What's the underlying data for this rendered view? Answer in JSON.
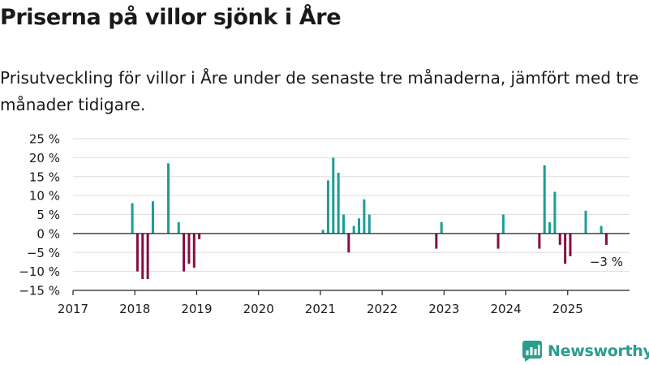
{
  "title": "Priserna på villor sjönk i Åre",
  "subtitle": "Prisutveckling för villor i Åre under de senaste tre månaderna, jämfört med tre månader tidigare.",
  "brand": {
    "name": "Newsworthy",
    "color": "#2a9d8f",
    "icon": "bar-chart-bubble-icon"
  },
  "colors": {
    "positive": "#1c9d96",
    "negative": "#850e44",
    "grid": "#dedede",
    "axis": "#222222"
  },
  "chart_data": {
    "type": "bar",
    "title": "Priserna på villor sjönk i Åre",
    "xlabel": "",
    "ylabel": "",
    "ylim": [
      -15,
      25
    ],
    "yticks": [
      -15,
      -10,
      -5,
      0,
      5,
      10,
      15,
      20,
      25
    ],
    "ytick_labels": [
      "−15 %",
      "−10 %",
      "−5 %",
      "0 %",
      "5 %",
      "10 %",
      "15 %",
      "20 %",
      "25 %"
    ],
    "xlim": [
      "2017-01",
      "2026-01"
    ],
    "xticks": [
      "2017",
      "2018",
      "2019",
      "2020",
      "2021",
      "2022",
      "2023",
      "2024",
      "2025"
    ],
    "grid": true,
    "annotation": {
      "month": "2025-08",
      "label": "−3 %"
    },
    "points": [
      {
        "month": "2017-12",
        "value": 8
      },
      {
        "month": "2018-01",
        "value": -10
      },
      {
        "month": "2018-02",
        "value": -12
      },
      {
        "month": "2018-03",
        "value": -12
      },
      {
        "month": "2018-04",
        "value": 8.5
      },
      {
        "month": "2018-07",
        "value": 18.5
      },
      {
        "month": "2018-09",
        "value": 3
      },
      {
        "month": "2018-10",
        "value": -10
      },
      {
        "month": "2018-11",
        "value": -8
      },
      {
        "month": "2018-12",
        "value": -9
      },
      {
        "month": "2019-01",
        "value": -1.5
      },
      {
        "month": "2021-01",
        "value": 1
      },
      {
        "month": "2021-02",
        "value": 14
      },
      {
        "month": "2021-03",
        "value": 20
      },
      {
        "month": "2021-04",
        "value": 16
      },
      {
        "month": "2021-05",
        "value": 5
      },
      {
        "month": "2021-06",
        "value": -5
      },
      {
        "month": "2021-07",
        "value": 2
      },
      {
        "month": "2021-08",
        "value": 4
      },
      {
        "month": "2021-09",
        "value": 9
      },
      {
        "month": "2021-10",
        "value": 5
      },
      {
        "month": "2022-11",
        "value": -4
      },
      {
        "month": "2022-12",
        "value": 3
      },
      {
        "month": "2023-11",
        "value": -4
      },
      {
        "month": "2023-12",
        "value": 5
      },
      {
        "month": "2024-07",
        "value": -4
      },
      {
        "month": "2024-08",
        "value": 18
      },
      {
        "month": "2024-09",
        "value": 3
      },
      {
        "month": "2024-10",
        "value": 11
      },
      {
        "month": "2024-11",
        "value": -3
      },
      {
        "month": "2024-12",
        "value": -8
      },
      {
        "month": "2025-01",
        "value": -6
      },
      {
        "month": "2025-04",
        "value": 6
      },
      {
        "month": "2025-07",
        "value": 2
      },
      {
        "month": "2025-08",
        "value": -3
      }
    ]
  }
}
